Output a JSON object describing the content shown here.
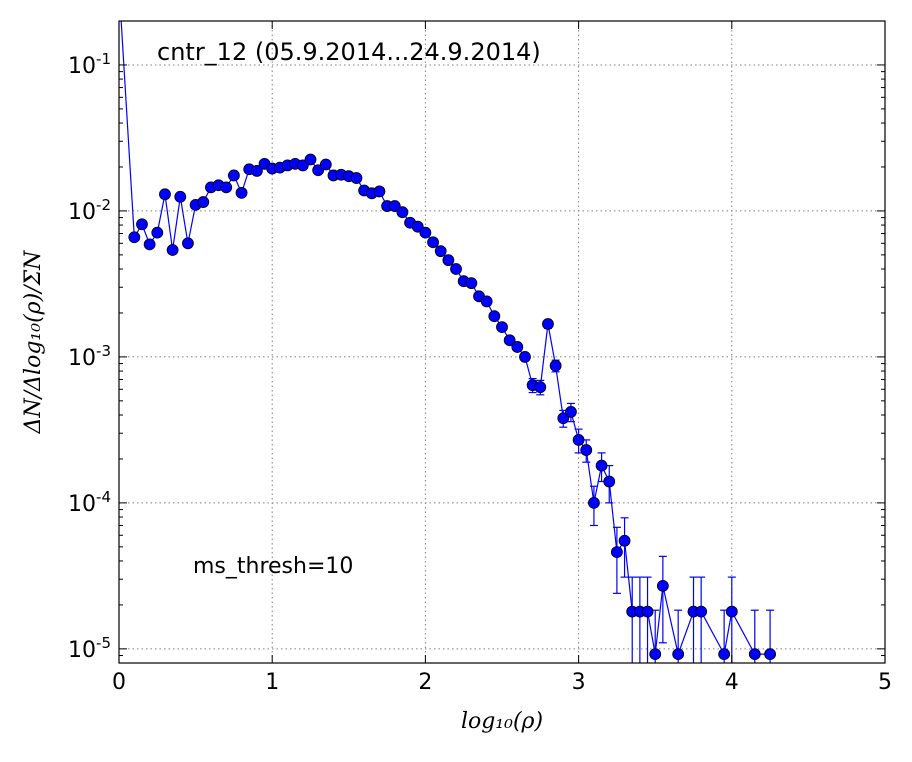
{
  "chart_data": {
    "type": "line",
    "title": "cntr_12 (05.9.2014...24.9.2014)",
    "annotation": "ms_thresh=10",
    "xlabel": "log₁₀(ρ)",
    "ylabel": "ΔN/Δlog₁₀(ρ)/ΣN",
    "xlim": [
      0,
      5
    ],
    "ylim": [
      8e-06,
      0.2
    ],
    "yscale": "log",
    "grid": true,
    "x_ticks": [
      0,
      1,
      2,
      3,
      4,
      5
    ],
    "y_ticks": [
      1e-05,
      0.0001,
      0.001,
      0.01,
      0.1
    ],
    "y_tick_labels": [
      {
        "base": "10",
        "exp": "-5"
      },
      {
        "base": "10",
        "exp": "-4"
      },
      {
        "base": "10",
        "exp": "-3"
      },
      {
        "base": "10",
        "exp": "-2"
      },
      {
        "base": "10",
        "exp": "-1"
      }
    ],
    "colors": {
      "series": "#0000ff",
      "grid": "#808080"
    },
    "series": [
      {
        "x": [
          0.0,
          0.1,
          0.15,
          0.2,
          0.25,
          0.3,
          0.35,
          0.4,
          0.45,
          0.5,
          0.55,
          0.6,
          0.65,
          0.7,
          0.75,
          0.8,
          0.85,
          0.9,
          0.95,
          1.0,
          1.05,
          1.1,
          1.15,
          1.2,
          1.25,
          1.3,
          1.35,
          1.4,
          1.45,
          1.5,
          1.55,
          1.6,
          1.65,
          1.7,
          1.75,
          1.8,
          1.85,
          1.9,
          1.95,
          2.0,
          2.05,
          2.1,
          2.15,
          2.2,
          2.25,
          2.3,
          2.35,
          2.4,
          2.45,
          2.5,
          2.55,
          2.6,
          2.65,
          2.7,
          2.75,
          2.8,
          2.85,
          2.9,
          2.95,
          3.0,
          3.05,
          3.1,
          3.15,
          3.2,
          3.25,
          3.3,
          3.35,
          3.4,
          3.45,
          3.5,
          3.55,
          3.65,
          3.75,
          3.8,
          3.95,
          4.0,
          4.15,
          4.25
        ],
        "y": [
          0.35,
          0.0066,
          0.0081,
          0.0059,
          0.0071,
          0.013,
          0.0054,
          0.0125,
          0.006,
          0.011,
          0.0115,
          0.0145,
          0.015,
          0.0145,
          0.0175,
          0.0133,
          0.0193,
          0.0188,
          0.021,
          0.0195,
          0.0198,
          0.0205,
          0.021,
          0.0205,
          0.0225,
          0.019,
          0.0208,
          0.0175,
          0.0177,
          0.0173,
          0.0168,
          0.0138,
          0.0132,
          0.0136,
          0.0108,
          0.0108,
          0.0098,
          0.0083,
          0.0078,
          0.0071,
          0.0061,
          0.0053,
          0.0046,
          0.004,
          0.0033,
          0.0032,
          0.0026,
          0.0024,
          0.0019,
          0.0016,
          0.0013,
          0.00117,
          0.001,
          0.00064,
          0.00062,
          0.00168,
          0.00087,
          0.00038,
          0.00042,
          0.00027,
          0.00023,
          0.0001,
          0.00018,
          0.00014,
          4.6e-05,
          5.5e-05,
          1.8e-05,
          1.8e-05,
          1.8e-05,
          9.2e-06,
          2.7e-05,
          9.2e-06,
          1.8e-05,
          1.8e-05,
          9.2e-06,
          1.8e-05,
          9.2e-06,
          9.2e-06
        ],
        "yerr": [
          0,
          0,
          0,
          0,
          0,
          0,
          0,
          0,
          0,
          0,
          0,
          0,
          0,
          0,
          0,
          0,
          0,
          0,
          0,
          0,
          0,
          0,
          0,
          0,
          0,
          0,
          0,
          0,
          0,
          0,
          0,
          0,
          0,
          0,
          0,
          0,
          0,
          0,
          0,
          0,
          0,
          0,
          0,
          0,
          0,
          0,
          0,
          0,
          0,
          0,
          0,
          0,
          6e-05,
          7e-05,
          7e-05,
          0.00011,
          8e-05,
          5e-05,
          6e-05,
          5e-05,
          4e-05,
          3e-05,
          4e-05,
          4e-05,
          2.2e-05,
          2.4e-05,
          1.3e-05,
          1.3e-05,
          1.3e-05,
          9.2e-06,
          1.6e-05,
          9.2e-06,
          1.3e-05,
          1.3e-05,
          9.2e-06,
          1.3e-05,
          9.2e-06,
          9.2e-06
        ]
      }
    ]
  }
}
